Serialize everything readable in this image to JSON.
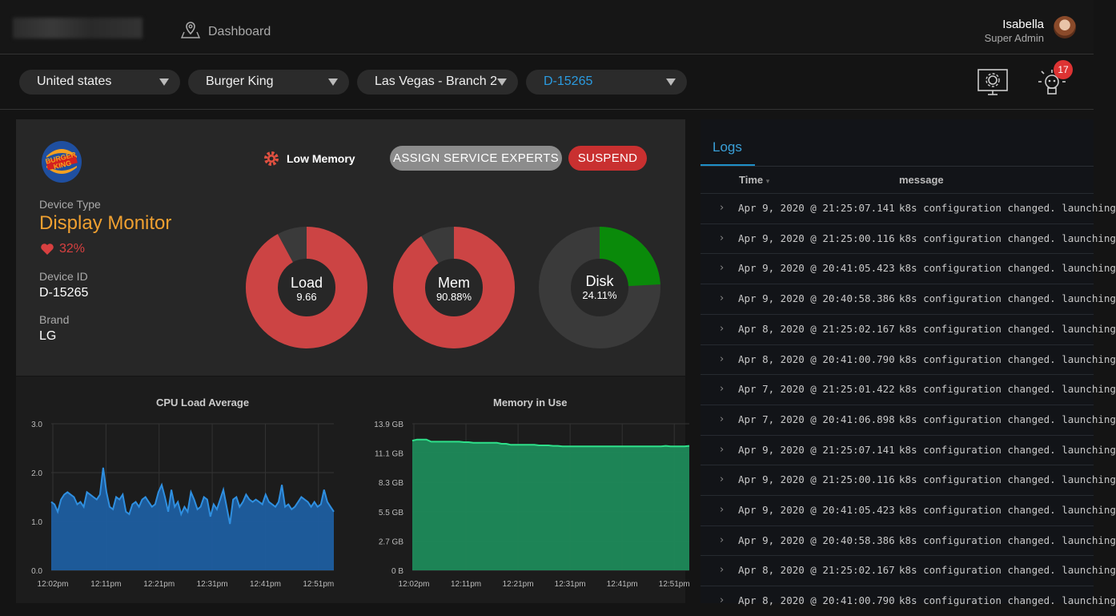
{
  "nav": {
    "dashboard_label": "Dashboard"
  },
  "user": {
    "name": "Isabella",
    "role": "Super Admin"
  },
  "filters": {
    "country": "United states",
    "brand": "Burger King",
    "branch": "Las Vegas - Branch 2",
    "device": "D-15265"
  },
  "notifications": {
    "count": "17"
  },
  "device": {
    "type_label": "Device Type",
    "type_value": "Display Monitor",
    "health": "32%",
    "id_label": "Device ID",
    "id_value": "D-15265",
    "brand_label": "Brand",
    "brand_value": "LG",
    "alert": "Low Memory",
    "assign_button": "ASSIGN SERVICE EXPERTS",
    "suspend_button": "SUSPEND"
  },
  "gauges": [
    {
      "label": "Load",
      "value_text": "9.66",
      "fraction": 0.92,
      "color": "#cc4444"
    },
    {
      "label": "Mem",
      "value_text": "90.88%",
      "fraction": 0.9088,
      "color": "#cc4444"
    },
    {
      "label": "Disk",
      "value_text": "24.11%",
      "fraction": 0.2411,
      "color": "#0a8a0a"
    }
  ],
  "chart_data": [
    {
      "type": "area",
      "title": "CPU Load Average",
      "color": "#2f8fe0",
      "fill": "#1d5ea0",
      "y_ticks": [
        "0.0",
        "1.0",
        "2.0",
        "3.0"
      ],
      "ylim": [
        0,
        3
      ],
      "x_ticks": [
        "12:02pm",
        "12:11pm",
        "12:21pm",
        "12:31pm",
        "12:41pm",
        "12:51pm"
      ],
      "values": [
        1.4,
        1.35,
        1.2,
        1.45,
        1.55,
        1.6,
        1.55,
        1.5,
        1.35,
        1.4,
        1.3,
        1.6,
        1.55,
        1.5,
        1.45,
        1.55,
        2.1,
        1.6,
        1.3,
        1.25,
        1.5,
        1.45,
        1.55,
        1.2,
        1.15,
        1.35,
        1.4,
        1.3,
        1.45,
        1.5,
        1.4,
        1.3,
        1.35,
        1.6,
        1.75,
        1.5,
        1.2,
        1.65,
        1.3,
        1.4,
        1.15,
        1.3,
        1.2,
        1.6,
        1.45,
        1.25,
        1.3,
        1.5,
        1.45,
        1.1,
        1.35,
        1.25,
        1.45,
        1.65,
        1.3,
        0.95,
        1.45,
        1.5,
        1.3,
        1.4,
        1.55,
        1.45,
        1.4,
        1.45,
        1.4,
        1.35,
        1.55,
        1.4,
        1.35,
        1.3,
        1.4,
        1.75,
        1.3,
        1.35,
        1.25,
        1.3,
        1.4,
        1.5,
        1.45,
        1.4,
        1.3,
        1.4,
        1.3,
        1.35,
        1.65,
        1.4,
        1.3,
        1.2
      ]
    },
    {
      "type": "area",
      "title": "Memory in Use",
      "color": "#2ee08a",
      "fill": "#1e8a5a",
      "y_ticks": [
        "0 B",
        "2.7 GB",
        "5.5 GB",
        "8.3 GB",
        "11.1 GB",
        "13.9 GB"
      ],
      "ylim": [
        0,
        13.9
      ],
      "x_ticks": [
        "12:02pm",
        "12:11pm",
        "12:21pm",
        "12:31pm",
        "12:41pm",
        "12:51pm"
      ],
      "values": [
        12.3,
        12.4,
        12.4,
        12.4,
        12.2,
        12.2,
        12.2,
        12.2,
        12.2,
        12.2,
        12.2,
        12.15,
        12.15,
        12.1,
        12.1,
        12.1,
        12.1,
        12.1,
        12.1,
        12.0,
        12.0,
        11.9,
        11.9,
        11.9,
        11.9,
        11.9,
        11.9,
        11.85,
        11.85,
        11.85,
        11.8,
        11.8,
        11.75,
        11.75,
        11.75,
        11.75,
        11.75,
        11.75,
        11.75,
        11.75,
        11.75,
        11.75,
        11.75,
        11.75,
        11.75,
        11.75,
        11.75,
        11.75,
        11.75,
        11.75,
        11.75,
        11.75,
        11.75,
        11.75,
        11.8,
        11.75,
        11.75,
        11.75,
        11.75,
        11.8
      ]
    }
  ],
  "logs": {
    "tab": "Logs",
    "col_time": "Time",
    "col_message": "message",
    "rows": [
      {
        "time": "Apr 9, 2020 @ 21:25:07.141",
        "message": "k8s configuration changed. launching"
      },
      {
        "time": "Apr 9, 2020 @ 21:25:00.116",
        "message": "k8s configuration changed. launching"
      },
      {
        "time": "Apr 9, 2020 @ 20:41:05.423",
        "message": "k8s configuration changed. launching"
      },
      {
        "time": "Apr 9, 2020 @ 20:40:58.386",
        "message": "k8s configuration changed. launching"
      },
      {
        "time": "Apr 8, 2020 @ 21:25:02.167",
        "message": "k8s configuration changed. launching"
      },
      {
        "time": "Apr 8, 2020 @ 20:41:00.790",
        "message": "k8s configuration changed. launching"
      },
      {
        "time": "Apr 7, 2020 @ 21:25:01.422",
        "message": "k8s configuration changed. launching"
      },
      {
        "time": "Apr 7, 2020 @ 20:41:06.898",
        "message": "k8s configuration changed. launching"
      },
      {
        "time": "Apr 9, 2020 @ 21:25:07.141",
        "message": "k8s configuration changed. launching"
      },
      {
        "time": "Apr 9, 2020 @ 21:25:00.116",
        "message": "k8s configuration changed. launching"
      },
      {
        "time": "Apr 9, 2020 @ 20:41:05.423",
        "message": "k8s configuration changed. launching"
      },
      {
        "time": "Apr 9, 2020 @ 20:40:58.386",
        "message": "k8s configuration changed. launching"
      },
      {
        "time": "Apr 8, 2020 @ 21:25:02.167",
        "message": "k8s configuration changed. launching"
      },
      {
        "time": "Apr 8, 2020 @ 20:41:00.790",
        "message": "k8s configuration changed. launching"
      }
    ]
  }
}
